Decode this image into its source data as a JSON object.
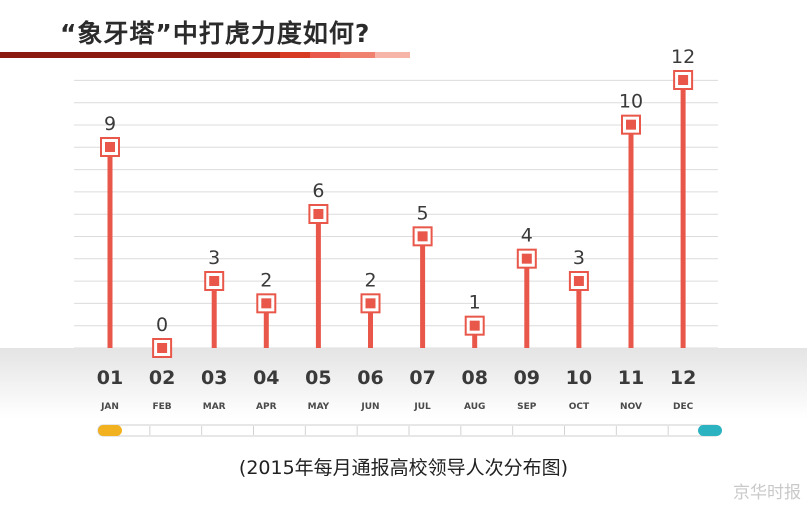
{
  "title": "“象牙塔”中打虎力度如何?",
  "caption": "(2015年每月通报高校领导人次分布图)",
  "watermark": "京华时报",
  "colors": {
    "accent": "#e8574a",
    "marker_fill": "#e8574a",
    "grid": "#dcdcdc",
    "title_bar": [
      "#8b1a10",
      "#b32616",
      "#d73a22",
      "#e8574a",
      "#f0816f",
      "#f6b5a8"
    ],
    "timeline_start": "#f2b21f",
    "timeline_end": "#2bb3c2"
  },
  "chart_data": {
    "type": "line",
    "title": "“象牙塔”中打虎力度如何?",
    "categories": [
      "01",
      "02",
      "03",
      "04",
      "05",
      "06",
      "07",
      "08",
      "09",
      "10",
      "11",
      "12"
    ],
    "month_abbr": [
      "JAN",
      "FEB",
      "MAR",
      "APR",
      "MAY",
      "JUN",
      "JUL",
      "AUG",
      "SEP",
      "OCT",
      "NOV",
      "DEC"
    ],
    "values": [
      9,
      0,
      3,
      2,
      6,
      2,
      5,
      1,
      4,
      3,
      10,
      12
    ],
    "ylim": [
      0,
      12
    ],
    "grid": true,
    "xlabel": "",
    "ylabel": ""
  }
}
